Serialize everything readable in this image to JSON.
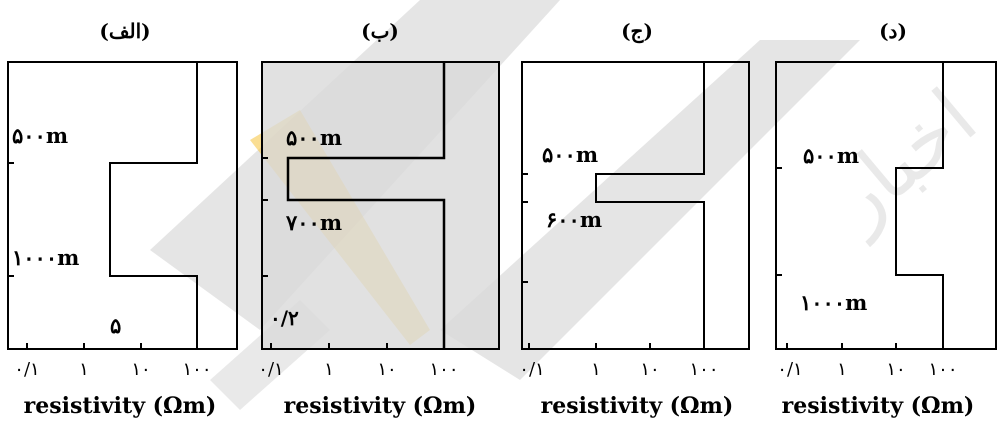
{
  "panels": [
    {
      "title": "(الف)",
      "depth_labels": [
        "۵۰۰m",
        "۱۰۰۰m"
      ],
      "extra_label": "۵",
      "profile": [
        {
          "top_m": 0,
          "bottom_m": 500,
          "resistivity_ohm_m": 100
        },
        {
          "top_m": 500,
          "bottom_m": 1000,
          "resistivity_ohm_m": 5
        },
        {
          "top_m": 1000,
          "bottom_m": null,
          "resistivity_ohm_m": 100
        }
      ]
    },
    {
      "title": "(ب)",
      "depth_labels": [
        "۵۰۰m",
        "۷۰۰m"
      ],
      "extra_label": "۰/۲",
      "profile": [
        {
          "top_m": 0,
          "bottom_m": 500,
          "resistivity_ohm_m": 100
        },
        {
          "top_m": 500,
          "bottom_m": 700,
          "resistivity_ohm_m": 0.2
        },
        {
          "top_m": 700,
          "bottom_m": null,
          "resistivity_ohm_m": 100
        }
      ]
    },
    {
      "title": "(ج)",
      "depth_labels": [
        "۵۰۰m",
        "۶۰۰m"
      ],
      "extra_label": "",
      "profile": [
        {
          "top_m": 0,
          "bottom_m": 500,
          "resistivity_ohm_m": 100
        },
        {
          "top_m": 500,
          "bottom_m": 600,
          "resistivity_ohm_m": 1
        },
        {
          "top_m": 600,
          "bottom_m": null,
          "resistivity_ohm_m": 100
        }
      ]
    },
    {
      "title": "(د)",
      "depth_labels": [
        "۵۰۰m",
        "۱۰۰۰m"
      ],
      "extra_label": "",
      "profile": [
        {
          "top_m": 0,
          "bottom_m": 500,
          "resistivity_ohm_m": 100
        },
        {
          "top_m": 500,
          "bottom_m": 1000,
          "resistivity_ohm_m": 10
        },
        {
          "top_m": 1000,
          "bottom_m": null,
          "resistivity_ohm_m": 100
        }
      ]
    }
  ],
  "x_ticks": [
    "۰/۱",
    "۱",
    "۱۰",
    "۱۰۰"
  ],
  "x_axis_label": "resistivity (Ωm)",
  "colors": {
    "line": "#000000",
    "watermark_gray": "#c8c8c8",
    "watermark_yellow": "#f6c33a",
    "shaded_panel": "#d9d9d9"
  }
}
